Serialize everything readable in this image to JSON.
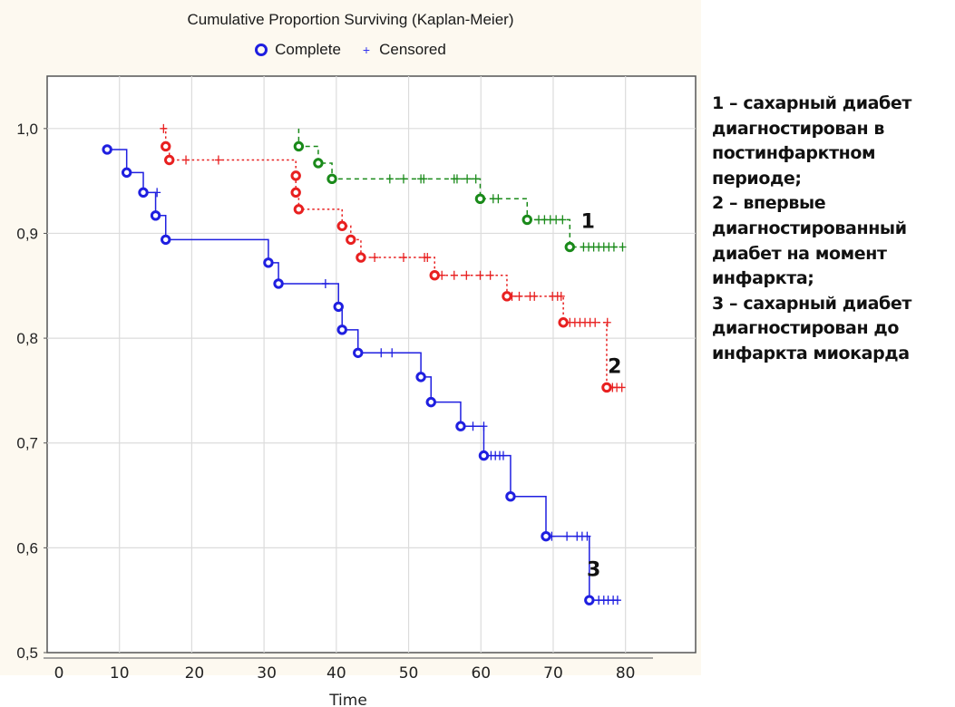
{
  "chart_data": {
    "type": "line",
    "title": "Cumulative Proportion Surviving (Kaplan-Meier)",
    "legend": {
      "complete": "Complete",
      "censored": "Censored",
      "placement": "top-center"
    },
    "xlabel": "Time",
    "ylabel": "",
    "xlim": [
      0,
      90
    ],
    "ylim": [
      0.5,
      1.05
    ],
    "xticks": [
      0,
      10,
      20,
      30,
      40,
      50,
      60,
      70,
      80
    ],
    "yticks": [
      0.5,
      0.6,
      0.7,
      0.8,
      0.9,
      1.0
    ],
    "ytick_labels": [
      "0,5",
      "0,6",
      "0,7",
      "0,8",
      "0,9",
      "1,0"
    ],
    "grid": true,
    "series": [
      {
        "name": "1",
        "color": "#1a8a1a",
        "style": "dashed",
        "start": [
          34.8,
          1.0
        ],
        "complete": [
          [
            34.8,
            0.983
          ],
          [
            37.5,
            0.967
          ],
          [
            39.4,
            0.952
          ],
          [
            59.9,
            0.933
          ],
          [
            66.4,
            0.913
          ],
          [
            72.3,
            0.887
          ]
        ],
        "censored": [
          [
            47.4,
            0.952
          ],
          [
            49.3,
            0.952
          ],
          [
            51.7,
            0.952
          ],
          [
            52.1,
            0.952
          ],
          [
            56.3,
            0.952
          ],
          [
            56.7,
            0.952
          ],
          [
            58.1,
            0.952
          ],
          [
            59.3,
            0.952
          ],
          [
            61.7,
            0.933
          ],
          [
            62.4,
            0.933
          ],
          [
            68.0,
            0.913
          ],
          [
            68.8,
            0.913
          ],
          [
            69.6,
            0.913
          ],
          [
            70.4,
            0.913
          ],
          [
            71.3,
            0.913
          ],
          [
            74.2,
            0.887
          ],
          [
            74.9,
            0.887
          ],
          [
            75.6,
            0.887
          ],
          [
            76.3,
            0.887
          ],
          [
            77.0,
            0.887
          ],
          [
            77.7,
            0.887
          ],
          [
            78.4,
            0.887
          ],
          [
            79.6,
            0.887
          ]
        ],
        "end_time": 79.7,
        "label_position": [
          74.8,
          0.905
        ]
      },
      {
        "name": "2",
        "color": "#e82020",
        "style": "dotted",
        "start": [
          16.1,
          1.0
        ],
        "complete": [
          [
            16.4,
            0.983
          ],
          [
            16.9,
            0.97
          ],
          [
            34.4,
            0.955
          ],
          [
            34.4,
            0.939
          ],
          [
            34.8,
            0.923
          ],
          [
            40.8,
            0.907
          ],
          [
            42.0,
            0.894
          ],
          [
            43.4,
            0.877
          ],
          [
            53.6,
            0.86
          ],
          [
            63.6,
            0.84
          ],
          [
            71.4,
            0.815
          ],
          [
            77.4,
            0.753
          ]
        ],
        "censored": [
          [
            16.1,
            1.0
          ],
          [
            19.2,
            0.97
          ],
          [
            23.7,
            0.97
          ],
          [
            45.3,
            0.877
          ],
          [
            49.3,
            0.877
          ],
          [
            52.2,
            0.877
          ],
          [
            52.6,
            0.877
          ],
          [
            54.6,
            0.86
          ],
          [
            56.3,
            0.86
          ],
          [
            58.0,
            0.86
          ],
          [
            59.9,
            0.86
          ],
          [
            61.3,
            0.86
          ],
          [
            64.3,
            0.84
          ],
          [
            65.3,
            0.84
          ],
          [
            66.8,
            0.84
          ],
          [
            67.4,
            0.84
          ],
          [
            69.9,
            0.84
          ],
          [
            70.6,
            0.84
          ],
          [
            71.1,
            0.84
          ],
          [
            72.3,
            0.815
          ],
          [
            73.0,
            0.815
          ],
          [
            73.7,
            0.815
          ],
          [
            74.4,
            0.815
          ],
          [
            75.1,
            0.815
          ],
          [
            75.8,
            0.815
          ],
          [
            77.5,
            0.815
          ],
          [
            78.2,
            0.753
          ],
          [
            78.8,
            0.753
          ],
          [
            79.5,
            0.753
          ]
        ],
        "end_time": 79.6,
        "label_position": [
          78.5,
          0.767
        ]
      },
      {
        "name": "3",
        "color": "#1f1fe0",
        "style": "solid",
        "start": [
          8.3,
          0.98
        ],
        "complete": [
          [
            8.3,
            0.98
          ],
          [
            11.0,
            0.958
          ],
          [
            13.3,
            0.939
          ],
          [
            15.0,
            0.917
          ],
          [
            16.4,
            0.894
          ],
          [
            30.6,
            0.872
          ],
          [
            32.0,
            0.852
          ],
          [
            40.3,
            0.83
          ],
          [
            40.8,
            0.808
          ],
          [
            43.0,
            0.786
          ],
          [
            51.7,
            0.763
          ],
          [
            53.1,
            0.739
          ],
          [
            57.2,
            0.716
          ],
          [
            60.4,
            0.688
          ],
          [
            64.1,
            0.649
          ],
          [
            69.0,
            0.611
          ],
          [
            75.0,
            0.55
          ]
        ],
        "censored": [
          [
            15.2,
            0.939
          ],
          [
            38.5,
            0.852
          ],
          [
            46.2,
            0.786
          ],
          [
            47.7,
            0.786
          ],
          [
            58.9,
            0.716
          ],
          [
            60.4,
            0.716
          ],
          [
            61.4,
            0.688
          ],
          [
            62.0,
            0.688
          ],
          [
            62.6,
            0.688
          ],
          [
            63.1,
            0.688
          ],
          [
            69.8,
            0.611
          ],
          [
            71.9,
            0.611
          ],
          [
            73.3,
            0.611
          ],
          [
            74.0,
            0.611
          ],
          [
            74.7,
            0.611
          ],
          [
            76.3,
            0.55
          ],
          [
            77.0,
            0.55
          ],
          [
            77.6,
            0.55
          ],
          [
            78.3,
            0.55
          ],
          [
            78.9,
            0.55
          ]
        ],
        "end_time": 79.0,
        "label_position": [
          75.6,
          0.573
        ]
      }
    ]
  },
  "annotation": {
    "lines": [
      "1 – сахарный диабет",
      "диагностирован в",
      "постинфарктном",
      "периоде;",
      "2 – впервые",
      "диагностированный",
      "диабет на момент",
      "инфаркта;",
      "3 – сахарный диабет",
      "диагностирован до",
      "инфаркта миокарда"
    ]
  }
}
